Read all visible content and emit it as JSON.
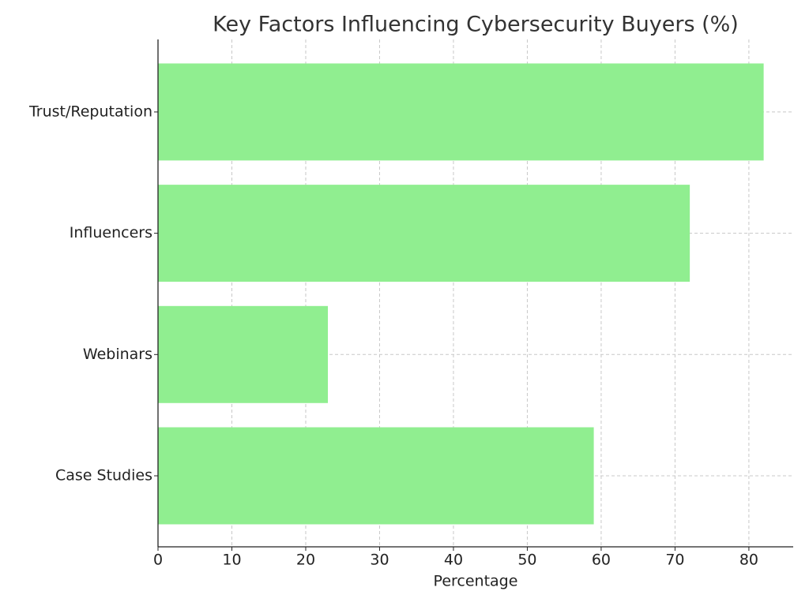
{
  "chart_data": {
    "type": "barh",
    "title": "Key Factors Influencing Cybersecurity Buyers (%)",
    "x_label": "Percentage",
    "categories": [
      "Case Studies",
      "Webinars",
      "Influencers",
      "Trust/Reputation"
    ],
    "values": [
      59,
      23,
      72,
      82
    ],
    "color": "#90ee90",
    "xlim": [
      0,
      86
    ],
    "xticks": [
      0,
      10,
      20,
      30,
      40,
      50,
      60,
      70,
      80
    ],
    "grid": true
  }
}
